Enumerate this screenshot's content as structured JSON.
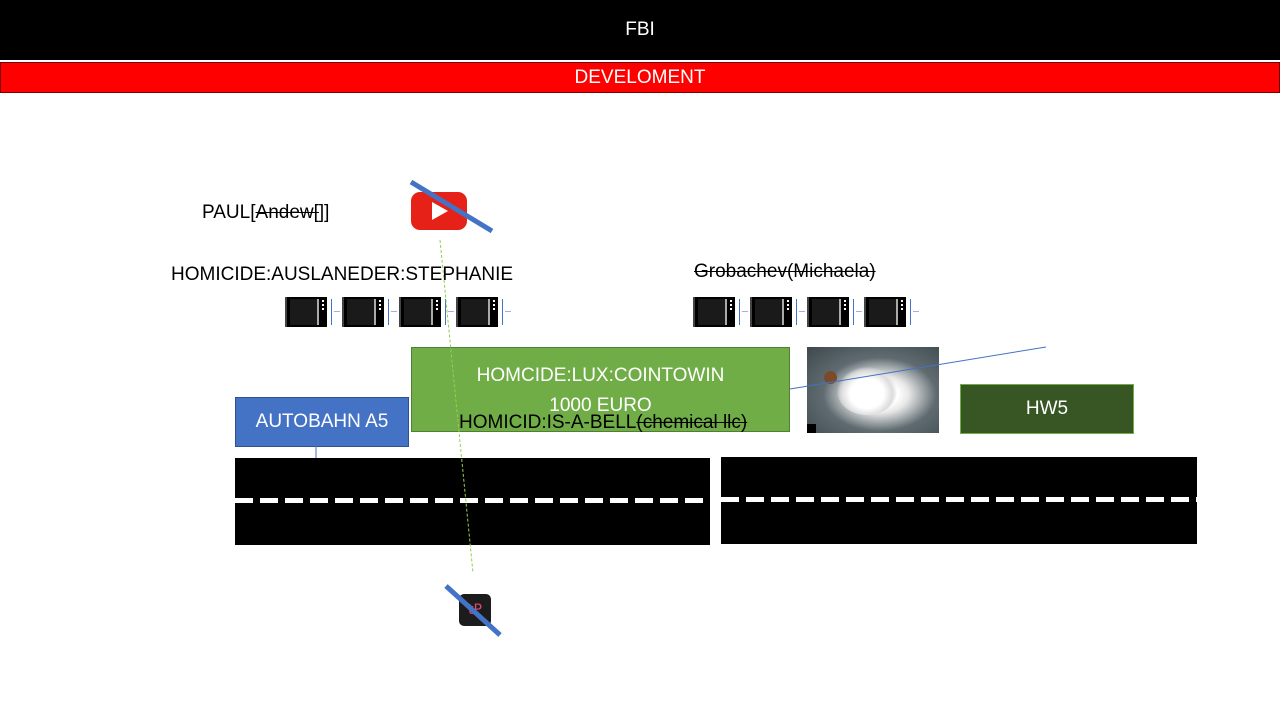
{
  "header": {
    "title": "FBI",
    "subtitle": "DEVELOMENT"
  },
  "labels": {
    "paul": "PAUL[",
    "andew": "Andew[",
    "paul_close": "]]",
    "homicide_stephanie": "HOMICIDE:AUSLANEDER:STEPHANIE",
    "grobachev": "Grobachev(Michaela)",
    "homicid_bell": "HOMICID:IS-A-BELL",
    "chemical": "(chemical llc)"
  },
  "boxes": {
    "green_line1": "HOMCIDE:LUX:COINTOWIN",
    "green_line2": "1000 EURO",
    "autobahn": "AUTOBAHN A5",
    "hw5": "HW5"
  },
  "icons": {
    "youtube": "youtube-icon",
    "app": "app-icon",
    "app_glyph": "tP",
    "thumbnail": "video-thumbnail-icon",
    "powder": "powder-image"
  },
  "colors": {
    "header": "#000000",
    "dev_bar": "#ff0000",
    "green_box": "#70ad47",
    "autobahn": "#4472c4",
    "hw5": "#375623",
    "cross_line": "#4472c4",
    "dotted_line": "#92d050"
  }
}
